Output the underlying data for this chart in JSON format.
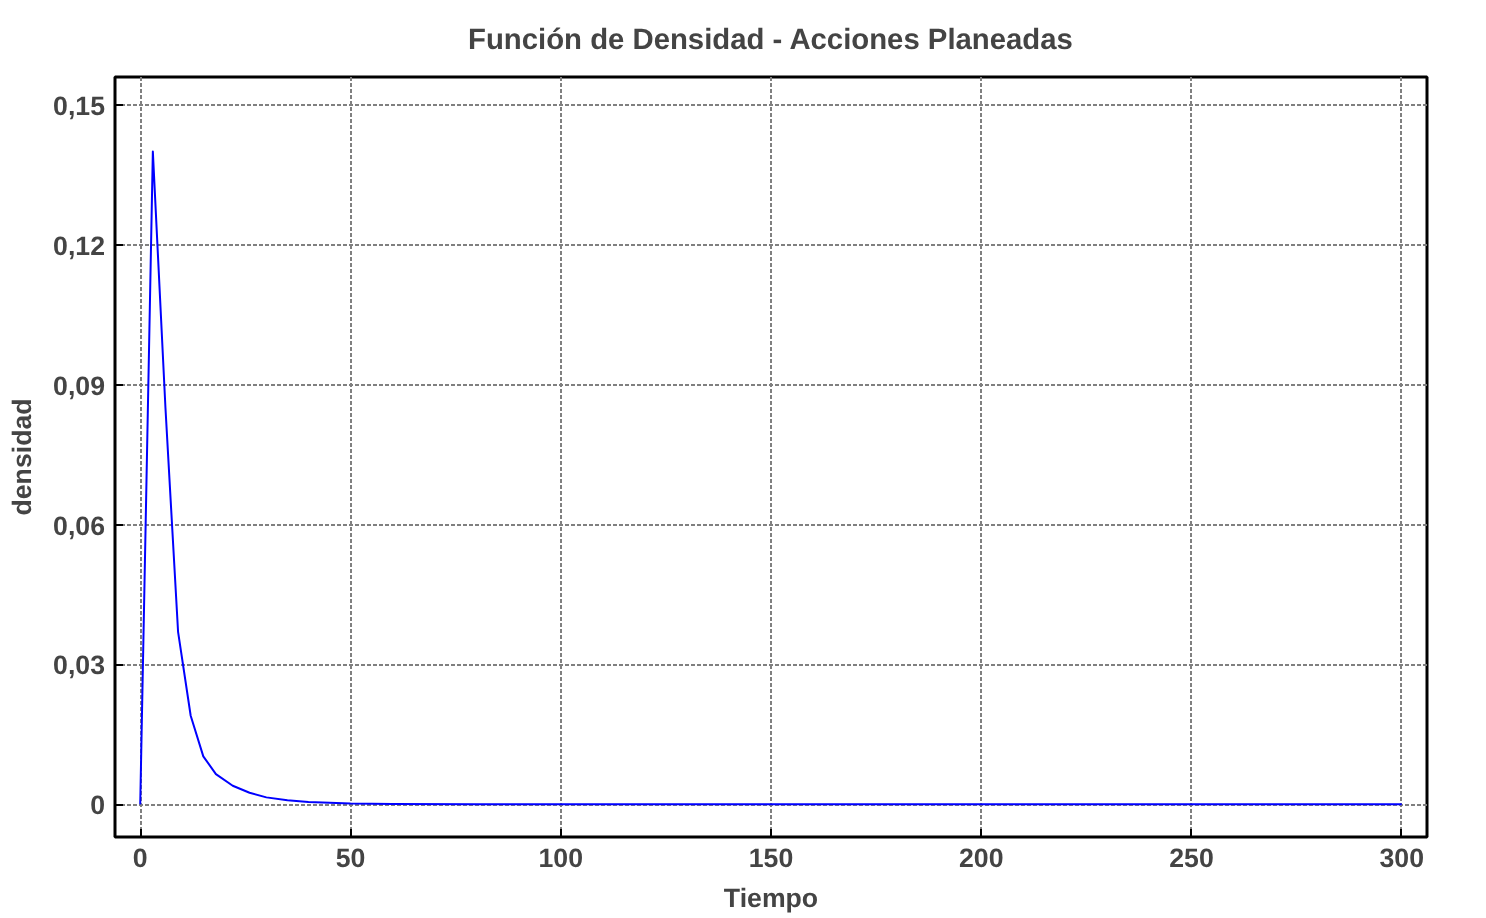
{
  "chart_data": {
    "type": "line",
    "title": "Función de Densidad - Acciones Planeadas",
    "xlabel": "Tiempo",
    "ylabel": "densidad",
    "x": [
      0,
      3,
      6,
      9,
      12,
      15,
      18,
      22,
      26,
      30,
      35,
      40,
      50,
      60,
      80,
      100,
      150,
      200,
      250,
      300
    ],
    "series": [
      {
        "color": "#0000ff",
        "values": [
          0,
          0.14,
          0.085,
          0.037,
          0.019,
          0.0103,
          0.0065,
          0.004,
          0.0025,
          0.0015,
          0.0009,
          0.0005,
          0.0002,
          0.0001,
          0,
          0,
          0,
          0,
          0,
          0
        ]
      }
    ],
    "xlim": [
      -6,
      306
    ],
    "ylim": [
      -0.007,
      0.156
    ],
    "xticks": [
      0,
      50,
      100,
      150,
      200,
      250,
      300
    ],
    "yticks": [
      {
        "value": 0,
        "label": "0"
      },
      {
        "value": 0.03,
        "label": "0,03"
      },
      {
        "value": 0.06,
        "label": "0,06"
      },
      {
        "value": 0.09,
        "label": "0,09"
      },
      {
        "value": 0.12,
        "label": "0,12"
      },
      {
        "value": 0.15,
        "label": "0,15"
      }
    ],
    "grid": true,
    "line_style": "solid",
    "marker": "none"
  }
}
